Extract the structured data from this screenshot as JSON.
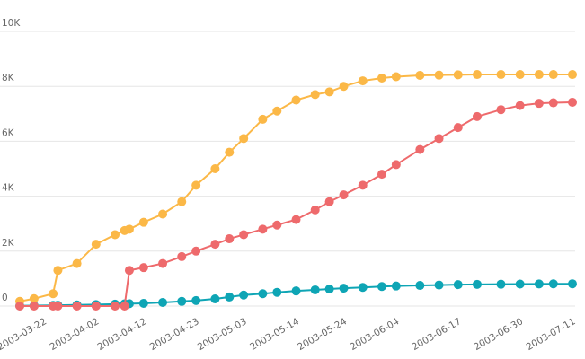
{
  "chart_data": {
    "type": "line",
    "x": [
      "2003-03-17",
      "2003-03-20",
      "2003-03-24",
      "2003-03-25",
      "2003-03-29",
      "2003-04-02",
      "2003-04-06",
      "2003-04-08",
      "2003-04-09",
      "2003-04-12",
      "2003-04-16",
      "2003-04-20",
      "2003-04-23",
      "2003-04-27",
      "2003-04-30",
      "2003-05-03",
      "2003-05-07",
      "2003-05-10",
      "2003-05-14",
      "2003-05-18",
      "2003-05-21",
      "2003-05-24",
      "2003-05-28",
      "2003-06-01",
      "2003-06-04",
      "2003-06-09",
      "2003-06-13",
      "2003-06-17",
      "2003-06-21",
      "2003-06-26",
      "2003-06-30",
      "2003-07-04",
      "2003-07-07",
      "2003-07-11"
    ],
    "series": [
      {
        "color": "#0ea5b5",
        "values": [
          10,
          15,
          25,
          30,
          40,
          55,
          70,
          80,
          85,
          100,
          130,
          170,
          200,
          260,
          330,
          400,
          450,
          500,
          550,
          590,
          620,
          650,
          680,
          710,
          730,
          750,
          765,
          780,
          790,
          795,
          800,
          805,
          808,
          810
        ]
      },
      {
        "color": "#fbb847",
        "values": [
          170,
          270,
          450,
          1300,
          1550,
          2250,
          2600,
          2750,
          2800,
          3050,
          3350,
          3800,
          4400,
          5000,
          5600,
          6100,
          6800,
          7100,
          7500,
          7700,
          7800,
          8000,
          8200,
          8300,
          8350,
          8400,
          8410,
          8420,
          8430,
          8430,
          8430,
          8430,
          8430,
          8430
        ]
      },
      {
        "color": "#ee6a6c",
        "values": [
          0,
          0,
          0,
          0,
          0,
          0,
          0,
          0,
          1300,
          1400,
          1550,
          1800,
          2000,
          2250,
          2450,
          2600,
          2800,
          2950,
          3150,
          3500,
          3800,
          4050,
          4400,
          4800,
          5150,
          5700,
          6100,
          6500,
          6900,
          7150,
          7300,
          7380,
          7400,
          7420
        ]
      }
    ],
    "xlim": [
      "2003-03-17",
      "2003-07-11"
    ],
    "xticks": [
      "2003-03-22",
      "2003-04-02",
      "2003-04-12",
      "2003-04-23",
      "2003-05-03",
      "2003-05-14",
      "2003-05-24",
      "2003-06-04",
      "2003-06-17",
      "2003-06-30",
      "2003-07-11"
    ],
    "ylim": [
      0,
      10000
    ],
    "yticks": [
      {
        "value": 0,
        "label": "0"
      },
      {
        "value": 2000,
        "label": "2K"
      },
      {
        "value": 4000,
        "label": "4K"
      },
      {
        "value": 6000,
        "label": "6K"
      },
      {
        "value": 8000,
        "label": "8K"
      },
      {
        "value": 10000,
        "label": "10K"
      }
    ],
    "grid": true
  }
}
